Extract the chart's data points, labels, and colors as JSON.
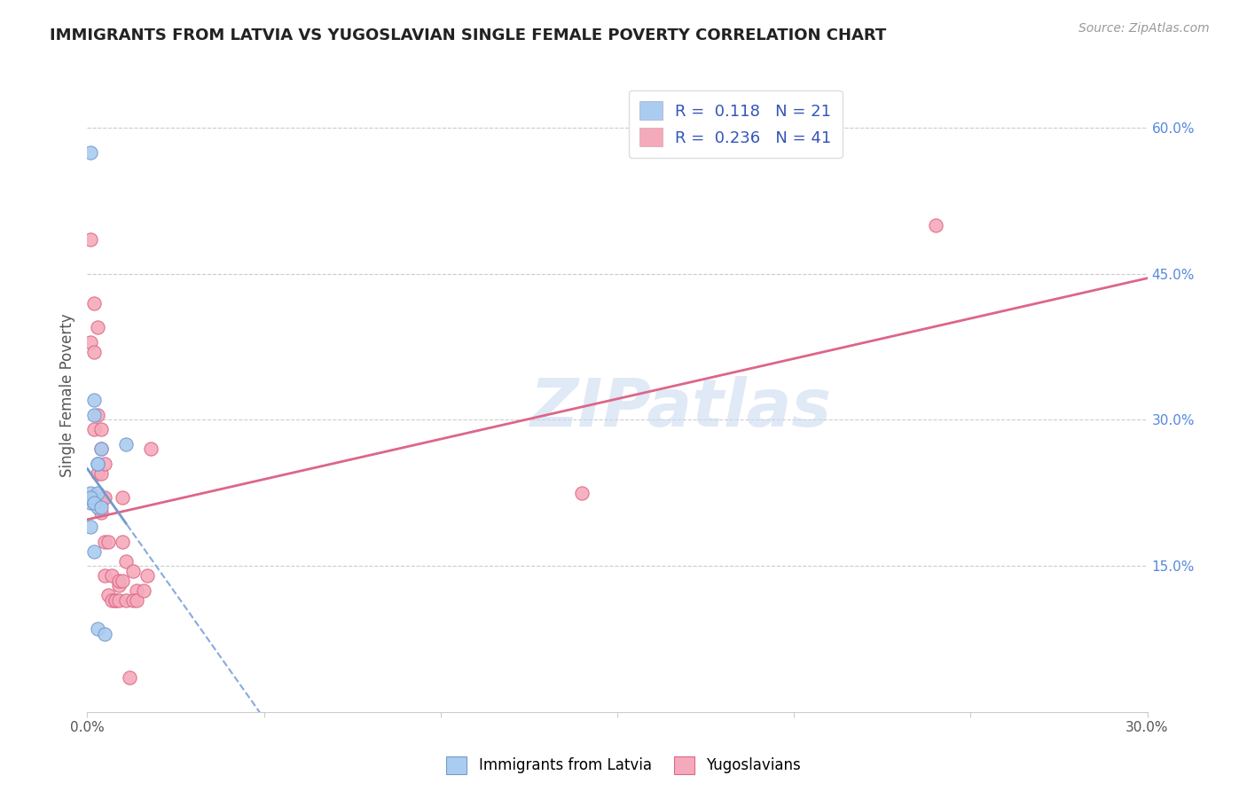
{
  "title": "IMMIGRANTS FROM LATVIA VS YUGOSLAVIAN SINGLE FEMALE POVERTY CORRELATION CHART",
  "source": "Source: ZipAtlas.com",
  "ylabel": "Single Female Poverty",
  "xlim": [
    0.0,
    0.3
  ],
  "ylim": [
    0.0,
    0.65
  ],
  "x_tick_positions": [
    0.0,
    0.05,
    0.1,
    0.15,
    0.2,
    0.25,
    0.3
  ],
  "x_tick_labels": [
    "0.0%",
    "",
    "",
    "",
    "",
    "",
    "30.0%"
  ],
  "y_ticks_right": [
    0.15,
    0.3,
    0.45,
    0.6
  ],
  "y_tick_labels_right": [
    "15.0%",
    "30.0%",
    "45.0%",
    "60.0%"
  ],
  "watermark": "ZIPatlas",
  "legend_latvia_r": "0.118",
  "legend_latvia_n": "21",
  "legend_yugo_r": "0.236",
  "legend_yugo_n": "41",
  "latvia_color": "#aaccf0",
  "yugo_color": "#f5aabb",
  "latvia_line_color": "#7799cc",
  "yugo_line_color": "#dd6688",
  "dashed_line_color": "#88aadd",
  "latvia_x": [
    0.001,
    0.002,
    0.002,
    0.003,
    0.001,
    0.002,
    0.003,
    0.001,
    0.002,
    0.003,
    0.004,
    0.002,
    0.003,
    0.001,
    0.002,
    0.004,
    0.001,
    0.002,
    0.003,
    0.005,
    0.011
  ],
  "latvia_y": [
    0.575,
    0.32,
    0.305,
    0.255,
    0.225,
    0.22,
    0.255,
    0.215,
    0.215,
    0.21,
    0.27,
    0.22,
    0.225,
    0.22,
    0.215,
    0.21,
    0.19,
    0.165,
    0.085,
    0.08,
    0.275
  ],
  "yugo_x": [
    0.001,
    0.001,
    0.002,
    0.002,
    0.002,
    0.003,
    0.003,
    0.004,
    0.004,
    0.003,
    0.004,
    0.004,
    0.005,
    0.005,
    0.004,
    0.005,
    0.006,
    0.005,
    0.006,
    0.007,
    0.007,
    0.008,
    0.009,
    0.008,
    0.009,
    0.009,
    0.01,
    0.011,
    0.01,
    0.01,
    0.011,
    0.013,
    0.014,
    0.013,
    0.014,
    0.016,
    0.017,
    0.012,
    0.018,
    0.14,
    0.24
  ],
  "yugo_y": [
    0.485,
    0.38,
    0.42,
    0.37,
    0.29,
    0.305,
    0.245,
    0.27,
    0.245,
    0.395,
    0.29,
    0.215,
    0.255,
    0.22,
    0.205,
    0.175,
    0.175,
    0.14,
    0.12,
    0.14,
    0.115,
    0.115,
    0.13,
    0.115,
    0.135,
    0.115,
    0.135,
    0.115,
    0.175,
    0.22,
    0.155,
    0.145,
    0.125,
    0.115,
    0.115,
    0.125,
    0.14,
    0.035,
    0.27,
    0.225,
    0.5
  ]
}
